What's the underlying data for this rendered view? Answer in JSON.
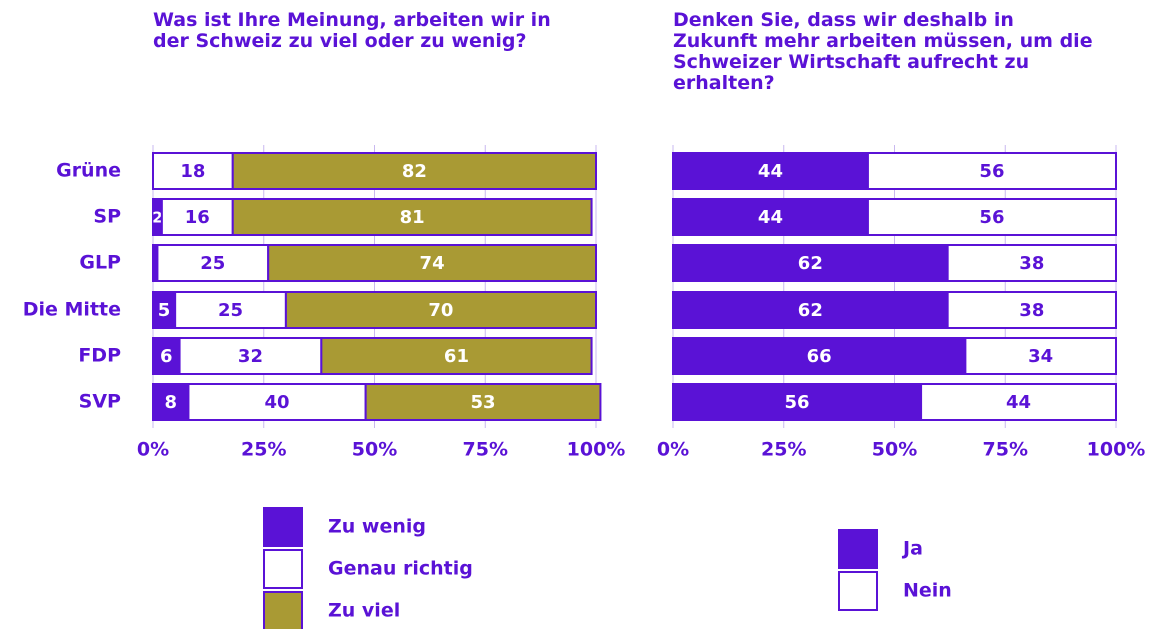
{
  "chart_data": [
    {
      "type": "stacked-bar-horizontal",
      "title": "Was ist Ihre Meinung, arbeiten wir in der Schweiz zu viel oder zu wenig?",
      "categories": [
        "Grüne",
        "SP",
        "GLP",
        "Die Mitte",
        "FDP",
        "SVP"
      ],
      "series": [
        {
          "name": "Zu wenig",
          "color": "#5a12d6",
          "values": [
            0,
            2,
            1,
            5,
            6,
            8
          ],
          "value_labels": [
            null,
            "2",
            null,
            "5",
            "6",
            "8"
          ]
        },
        {
          "name": "Genau richtig",
          "color": "#ffffff",
          "values": [
            18,
            16,
            25,
            25,
            32,
            40
          ]
        },
        {
          "name": "Zu viel",
          "color": "#a99a34",
          "values": [
            82,
            81,
            74,
            70,
            61,
            53
          ]
        }
      ],
      "xlim": [
        0,
        100
      ],
      "xticks": [
        {
          "value": 0,
          "label": "0%"
        },
        {
          "value": 25,
          "label": "25%"
        },
        {
          "value": 50,
          "label": "50%"
        },
        {
          "value": 75,
          "label": "75%"
        },
        {
          "value": 100,
          "label": "100%"
        }
      ],
      "grid": true
    },
    {
      "type": "stacked-bar-horizontal",
      "title": "Denken Sie, dass wir deshalb in Zukunft mehr arbeiten müssen, um die Schweizer Wirtschaft aufrecht zu erhalten?",
      "categories": [
        "Grüne",
        "SP",
        "GLP",
        "Die Mitte",
        "FDP",
        "SVP"
      ],
      "series": [
        {
          "name": "Ja",
          "color": "#5a12d6",
          "values": [
            44,
            44,
            62,
            62,
            66,
            56
          ]
        },
        {
          "name": "Nein",
          "color": "#ffffff",
          "values": [
            56,
            56,
            38,
            38,
            34,
            44
          ]
        }
      ],
      "xlim": [
        0,
        100
      ],
      "xticks": [
        {
          "value": 0,
          "label": "0%"
        },
        {
          "value": 25,
          "label": "25%"
        },
        {
          "value": 50,
          "label": "50%"
        },
        {
          "value": 75,
          "label": "75%"
        },
        {
          "value": 100,
          "label": "100%"
        }
      ],
      "grid": true
    }
  ]
}
